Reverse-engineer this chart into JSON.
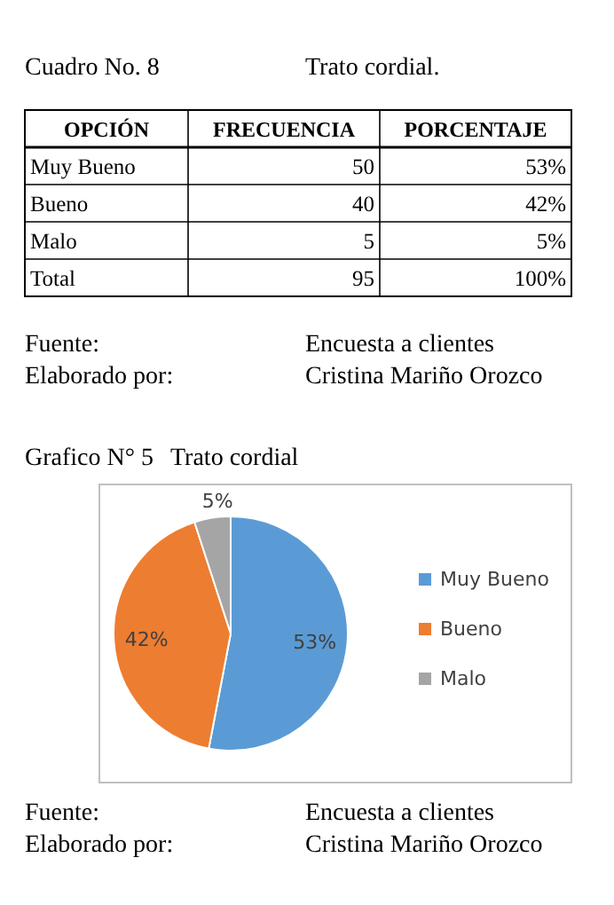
{
  "chart_data": [
    {
      "type": "other",
      "title": "Cuadro No. 8",
      "subtitle": "Trato cordial.",
      "annotations": [
        "OPCIÓN",
        "FRECUENCIA",
        "PORCENTAJE",
        "Muy Bueno",
        "50",
        "53%",
        "Bueno",
        "40",
        "42%",
        "Malo",
        "5",
        "5%",
        "Total",
        "95",
        "100%",
        "Fuente:",
        "Encuesta a clientes",
        "Elaborado por:",
        "Cristina Mariño Orozco"
      ]
    },
    {
      "type": "pie",
      "title": "Grafico N° 5",
      "subtitle": "Trato cordial",
      "categories": [
        "Muy Bueno",
        "Bueno",
        "Malo"
      ],
      "values": [
        53,
        42,
        5
      ],
      "colors": [
        "#5b9bd5",
        "#ed7d31",
        "#a5a5a5"
      ],
      "value_labels": [
        "53%",
        "42%",
        "5%"
      ],
      "legend": "right",
      "annotations": [
        "Fuente:",
        "Encuesta a clientes",
        "Elaborado por:",
        "Cristina Mariño Orozco"
      ]
    }
  ]
}
